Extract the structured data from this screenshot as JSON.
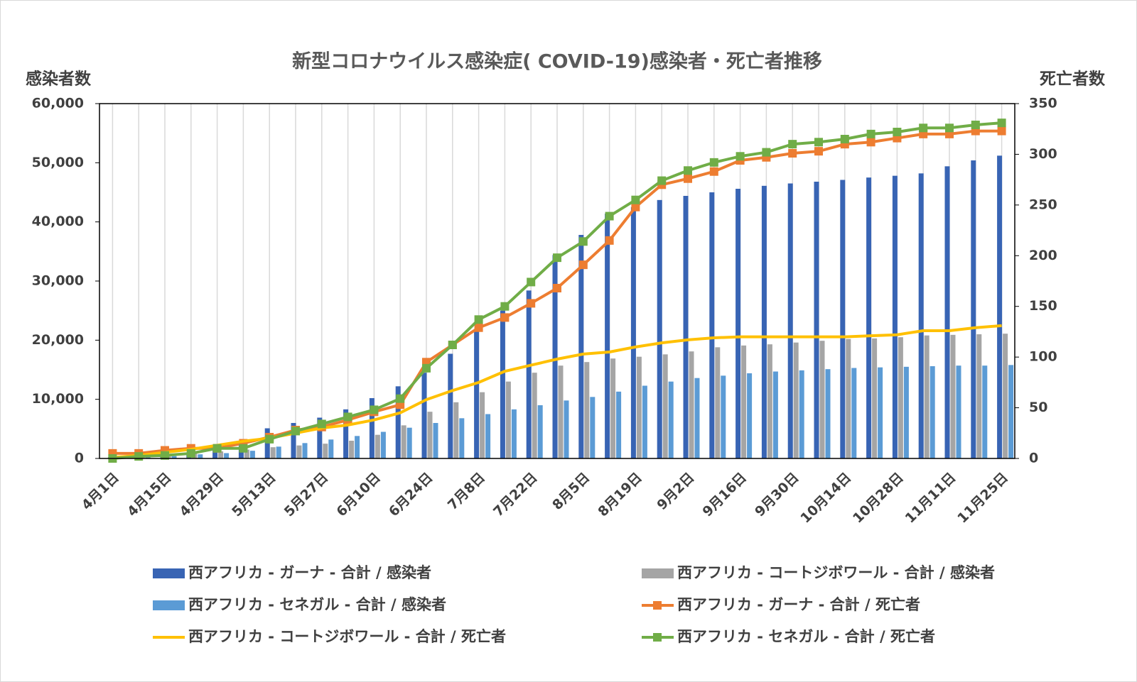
{
  "chart_data": {
    "type": "bar",
    "title": "新型コロナウイルス感染症( COVID-19)感染者・死亡者推移",
    "y_label": "感染者数",
    "y2_label": "死亡者数",
    "categories": [
      "4月1日",
      null,
      "4月15日",
      null,
      "4月29日",
      null,
      "5月13日",
      null,
      "5月27日",
      null,
      "6月10日",
      null,
      "6月24日",
      null,
      "7月8日",
      null,
      "7月22日",
      null,
      "8月5日",
      null,
      "8月19日",
      null,
      "9月2日",
      null,
      "9月16日",
      null,
      "9月30日",
      null,
      "10月14日",
      null,
      "10月28日",
      null,
      "11月11日",
      null,
      "11月25日"
    ],
    "ylim": [
      0,
      60000
    ],
    "yticks": [
      0,
      {
        "value": 10000,
        "label": "10,000"
      },
      {
        "value": 20000,
        "label": "20,000"
      },
      {
        "value": 30000,
        "label": "30,000"
      },
      {
        "value": 40000,
        "label": "40,000"
      },
      {
        "value": 50000,
        "label": "50,000"
      },
      {
        "value": 60000,
        "label": "60,000"
      }
    ],
    "y2lim": [
      0,
      350
    ],
    "y2ticks": [
      0,
      50,
      100,
      150,
      200,
      250,
      300,
      350
    ],
    "xgrid": true,
    "legend": "bottom",
    "series": [
      {
        "name": "西アフリカ - ガーナ - 合計 / 感染者",
        "type": "bar",
        "color": "#3864b4",
        "values": [
          200,
          300,
          600,
          1000,
          1800,
          3000,
          5100,
          6000,
          6900,
          8300,
          10200,
          12200,
          14500,
          17700,
          21900,
          25000,
          28400,
          34400,
          37800,
          41400,
          42500,
          43700,
          44400,
          45000,
          45600,
          46100,
          46500,
          46800,
          47100,
          47500,
          47800,
          48200,
          49400,
          50400,
          51200
        ]
      },
      {
        "name": "西アフリカ - コートジボワール - 合計 / 感染者",
        "type": "bar",
        "color": "#a5a5a5",
        "values": [
          200,
          400,
          600,
          900,
          1200,
          1500,
          1900,
          2200,
          2500,
          3000,
          4000,
          5600,
          7900,
          9500,
          11200,
          13000,
          14500,
          15700,
          16300,
          16900,
          17200,
          17600,
          18100,
          18800,
          19100,
          19300,
          19600,
          19900,
          20200,
          20300,
          20500,
          20800,
          20900,
          21000,
          21100
        ]
      },
      {
        "name": "西アフリカ - セネガル - 合計 / 感染者",
        "type": "bar",
        "color": "#5b9bd5",
        "values": [
          200,
          300,
          400,
          700,
          900,
          1300,
          2000,
          2600,
          3200,
          3800,
          4500,
          5200,
          6000,
          6800,
          7500,
          8300,
          9000,
          9800,
          10400,
          11300,
          12300,
          13000,
          13600,
          14000,
          14400,
          14700,
          14900,
          15100,
          15300,
          15400,
          15500,
          15600,
          15700,
          15700,
          15800
        ]
      },
      {
        "name": "西アフリカ - ガーナ - 合計 / 死亡者",
        "type": "line",
        "axis": "y2",
        "marker": "square",
        "color": "#ed7d31",
        "values": [
          5,
          5,
          8,
          10,
          10,
          15,
          21,
          28,
          31,
          38,
          46,
          53,
          95,
          112,
          129,
          139,
          153,
          168,
          191,
          215,
          248,
          270,
          276,
          283,
          294,
          297,
          301,
          303,
          310,
          312,
          316,
          320,
          320,
          323,
          323
        ]
      },
      {
        "name": "西アフリカ - コートジボワール - 合計 / 死亡者",
        "type": "line",
        "axis": "y2",
        "color": "#ffc000",
        "values": [
          1,
          3,
          6,
          9,
          13,
          17,
          20,
          25,
          30,
          33,
          38,
          45,
          58,
          67,
          75,
          86,
          92,
          98,
          103,
          105,
          110,
          114,
          117,
          119,
          120,
          120,
          120,
          120,
          120,
          121,
          122,
          126,
          126,
          129,
          131
        ]
      },
      {
        "name": "西アフリカ - セネガル - 合計 / 死亡者",
        "type": "line",
        "axis": "y2",
        "marker": "square",
        "color": "#70ad47",
        "values": [
          0,
          2,
          3,
          5,
          10,
          10,
          19,
          27,
          34,
          41,
          48,
          59,
          89,
          112,
          137,
          150,
          174,
          198,
          214,
          239,
          255,
          274,
          284,
          292,
          298,
          302,
          310,
          312,
          315,
          320,
          322,
          326,
          326,
          329,
          331
        ]
      }
    ]
  }
}
